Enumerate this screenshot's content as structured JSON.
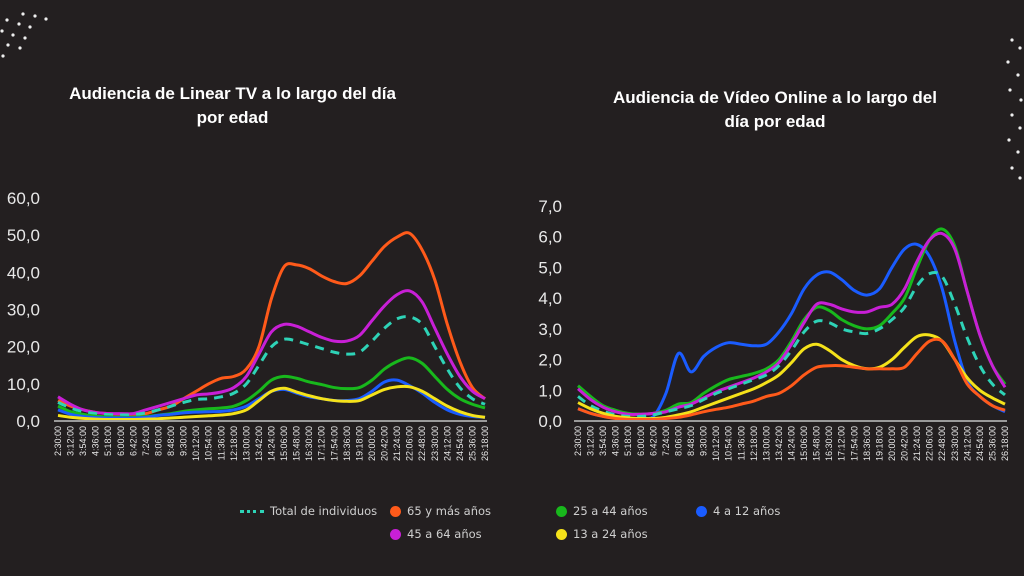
{
  "chart_data": [
    {
      "type": "line",
      "title": "Audiencia de Linear TV a lo largo del día por edad",
      "ylim": [
        0,
        60
      ],
      "yticks": [
        "0,0",
        "10,0",
        "20,0",
        "30,0",
        "40,0",
        "50,0",
        "60,0"
      ],
      "categories": [
        "2:30:00",
        "3:12:00",
        "3:54:00",
        "4:36:00",
        "5:18:00",
        "6:00:00",
        "6:42:00",
        "7:24:00",
        "8:06:00",
        "8:48:00",
        "9:30:00",
        "10:12:00",
        "10:54:00",
        "11:36:00",
        "12:18:00",
        "13:00:00",
        "13:42:00",
        "14:24:00",
        "15:06:00",
        "15:48:00",
        "16:30:00",
        "17:12:00",
        "17:54:00",
        "18:36:00",
        "19:18:00",
        "20:00:00",
        "20:42:00",
        "21:24:00",
        "22:06:00",
        "22:48:00",
        "23:30:00",
        "24:12:00",
        "24:54:00",
        "25:36:00",
        "26:18:00"
      ],
      "series": [
        {
          "name": "65 y más años",
          "color": "#ff5a1a",
          "values": [
            5.5,
            4,
            3,
            2.3,
            2,
            1.8,
            1.8,
            2,
            3,
            4,
            6,
            8,
            10,
            11.5,
            12,
            14,
            20,
            33,
            41.5,
            42,
            41,
            39,
            37.5,
            37,
            39,
            43,
            47,
            49.5,
            50.5,
            46,
            38,
            26,
            16,
            9,
            6
          ]
        },
        {
          "name": "45 a 64 años",
          "color": "#c81fd6",
          "values": [
            6.5,
            4.5,
            3,
            2.3,
            2,
            2,
            2,
            3,
            4,
            5,
            6,
            7,
            7.3,
            7.8,
            9,
            12,
            18,
            24,
            26,
            25.5,
            24,
            22.5,
            21.5,
            21.5,
            23,
            27,
            31,
            34,
            35,
            32,
            25,
            18,
            12,
            8,
            6
          ]
        },
        {
          "name": "Total de individuos",
          "color": "#2ed3b7",
          "dashed": true,
          "values": [
            5,
            3.5,
            2.5,
            2,
            1.7,
            1.6,
            1.7,
            2.2,
            3,
            4,
            5,
            5.8,
            6,
            6.5,
            7.5,
            10,
            15,
            20,
            22,
            21.5,
            20.5,
            19.5,
            18.5,
            18,
            18.5,
            21.5,
            25,
            27.5,
            28,
            26,
            20,
            14,
            9,
            6,
            4.5
          ]
        },
        {
          "name": "25 a 44 años",
          "color": "#18b81c",
          "values": [
            4,
            2.5,
            1.8,
            1.3,
            1.1,
            1,
            1,
            1.2,
            1.6,
            2,
            2.6,
            3,
            3.3,
            3.5,
            4,
            5.5,
            8,
            11,
            12,
            11.5,
            10.5,
            9.8,
            9,
            8.7,
            9,
            11,
            14,
            16,
            17,
            15.5,
            12,
            8.5,
            6,
            4.5,
            3.5
          ]
        },
        {
          "name": "4 a 12 años",
          "color": "#1a5cff",
          "values": [
            3,
            1.8,
            1.2,
            0.9,
            0.8,
            0.8,
            0.8,
            1,
            1.5,
            1.8,
            2.2,
            2.4,
            2.5,
            2.6,
            3,
            4,
            6,
            8,
            8.5,
            7.5,
            6.5,
            6,
            5.5,
            5.5,
            6,
            8,
            10.5,
            11,
            9.5,
            7.5,
            5,
            3,
            1.8,
            1.2,
            1
          ]
        },
        {
          "name": "13 a 24 años",
          "color": "#f5e21a",
          "values": [
            1.5,
            1,
            0.7,
            0.5,
            0.4,
            0.4,
            0.4,
            0.5,
            0.6,
            0.8,
            1,
            1.2,
            1.4,
            1.6,
            2,
            3,
            5.5,
            8,
            8.8,
            7.8,
            6.8,
            6,
            5.5,
            5.3,
            5.5,
            7,
            8.5,
            9.2,
            9.2,
            8,
            6,
            4,
            2.5,
            1.5,
            1
          ]
        }
      ]
    },
    {
      "type": "line",
      "title": "Audiencia de Vídeo Online a lo largo del día por edad",
      "ylim": [
        0,
        7
      ],
      "yticks": [
        "0,0",
        "1,0",
        "2,0",
        "3,0",
        "4,0",
        "5,0",
        "6,0",
        "7,0"
      ],
      "categories": [
        "2:30:00",
        "3:12:00",
        "3:54:00",
        "4:36:00",
        "5:18:00",
        "6:00:00",
        "6:42:00",
        "7:24:00",
        "8:06:00",
        "8:48:00",
        "9:30:00",
        "10:12:00",
        "10:54:00",
        "11:36:00",
        "12:18:00",
        "13:00:00",
        "13:42:00",
        "14:24:00",
        "15:06:00",
        "15:48:00",
        "16:30:00",
        "17:12:00",
        "17:54:00",
        "18:36:00",
        "19:18:00",
        "20:00:00",
        "20:42:00",
        "21:24:00",
        "22:06:00",
        "22:48:00",
        "23:30:00",
        "24:12:00",
        "24:54:00",
        "25:36:00",
        "26:18:00"
      ],
      "series": [
        {
          "name": "4 a 12 años",
          "color": "#1a5cff",
          "values": [
            0.4,
            0.25,
            0.15,
            0.1,
            0.08,
            0.1,
            0.15,
            0.9,
            2.2,
            1.6,
            2.1,
            2.4,
            2.55,
            2.5,
            2.45,
            2.5,
            2.9,
            3.5,
            4.3,
            4.75,
            4.85,
            4.6,
            4.25,
            4.1,
            4.3,
            5.0,
            5.6,
            5.75,
            5.35,
            4.3,
            2.6,
            1.3,
            0.8,
            0.5,
            0.3
          ]
        },
        {
          "name": "25 a 44 años",
          "color": "#18b81c",
          "values": [
            1.15,
            0.8,
            0.5,
            0.35,
            0.25,
            0.22,
            0.25,
            0.35,
            0.55,
            0.6,
            0.9,
            1.15,
            1.35,
            1.45,
            1.55,
            1.7,
            2.0,
            2.6,
            3.3,
            3.7,
            3.6,
            3.3,
            3.1,
            3.0,
            3.1,
            3.5,
            4.0,
            5.0,
            5.9,
            6.25,
            5.7,
            4.2,
            2.8,
            1.8,
            1.2
          ]
        },
        {
          "name": "45 a 64 años",
          "color": "#c81fd6",
          "values": [
            1.05,
            0.7,
            0.45,
            0.3,
            0.22,
            0.22,
            0.25,
            0.3,
            0.45,
            0.55,
            0.75,
            0.95,
            1.1,
            1.25,
            1.4,
            1.6,
            1.9,
            2.5,
            3.2,
            3.8,
            3.8,
            3.65,
            3.55,
            3.55,
            3.7,
            3.8,
            4.3,
            5.2,
            5.9,
            6.1,
            5.6,
            4.2,
            2.8,
            1.8,
            1.1
          ]
        },
        {
          "name": "Total de individuos",
          "color": "#2ed3b7",
          "dashed": true,
          "values": [
            0.8,
            0.5,
            0.32,
            0.2,
            0.15,
            0.15,
            0.2,
            0.3,
            0.4,
            0.5,
            0.7,
            0.9,
            1.05,
            1.2,
            1.35,
            1.5,
            1.8,
            2.3,
            2.9,
            3.25,
            3.2,
            3.0,
            2.9,
            2.85,
            3.0,
            3.3,
            3.7,
            4.4,
            4.8,
            4.7,
            3.8,
            2.7,
            1.8,
            1.2,
            0.85
          ]
        },
        {
          "name": "13 a 24 años",
          "color": "#f5e21a",
          "values": [
            0.6,
            0.4,
            0.25,
            0.15,
            0.1,
            0.08,
            0.08,
            0.12,
            0.2,
            0.3,
            0.45,
            0.6,
            0.75,
            0.9,
            1.05,
            1.25,
            1.5,
            1.9,
            2.35,
            2.5,
            2.3,
            2.0,
            1.8,
            1.7,
            1.75,
            2.0,
            2.4,
            2.75,
            2.8,
            2.6,
            2.0,
            1.4,
            1.0,
            0.75,
            0.55
          ]
        },
        {
          "name": "65 y más años",
          "color": "#ff5a1a",
          "values": [
            0.4,
            0.25,
            0.15,
            0.08,
            0.05,
            0.05,
            0.05,
            0.08,
            0.12,
            0.2,
            0.3,
            0.38,
            0.45,
            0.55,
            0.65,
            0.8,
            0.9,
            1.15,
            1.5,
            1.75,
            1.8,
            1.8,
            1.75,
            1.7,
            1.7,
            1.7,
            1.75,
            2.2,
            2.6,
            2.6,
            2.0,
            1.2,
            0.8,
            0.5,
            0.35
          ]
        }
      ]
    }
  ],
  "titles": {
    "left_line1": "Audiencia de Linear TV a lo largo del",
    "left_line1b": "día",
    "left": "Audiencia de Linear TV a lo largo del día",
    "left2": "por edad",
    "right": "Audiencia de Vídeo Online a lo largo del",
    "right2": "día por edad"
  },
  "legend": {
    "total": "Total de individuos",
    "age65": "65 y más años",
    "age25": "25 a 44 años",
    "age4": "4 a 12 años",
    "age45": "45 a 64 años",
    "age13": "13 a 24 años"
  }
}
